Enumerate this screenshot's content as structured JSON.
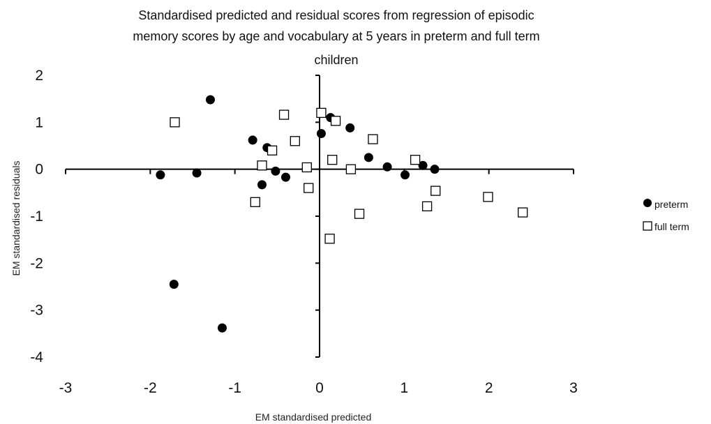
{
  "chart_data": {
    "type": "scatter",
    "title_lines": [
      "Standardised predicted and residual scores from regression of episodic",
      "memory scores by age and vocabulary at 5 years in preterm and full term",
      "children"
    ],
    "xlabel": "EM standardised predicted",
    "ylabel": "EM standardised residuals",
    "xlim": [
      -3,
      3
    ],
    "ylim": [
      -4,
      2
    ],
    "x_ticks": [
      -3,
      -2,
      -1,
      0,
      1,
      2,
      3
    ],
    "y_ticks": [
      2,
      1,
      0,
      -1,
      -2,
      -3,
      -4
    ],
    "grid": false,
    "legend_position": "right",
    "series": [
      {
        "name": "preterm",
        "marker": "filled-circle",
        "color": "#000000",
        "points": [
          [
            -1.88,
            -0.12
          ],
          [
            -1.45,
            -0.08
          ],
          [
            -1.29,
            1.48
          ],
          [
            -1.72,
            -2.45
          ],
          [
            -1.15,
            -3.38
          ],
          [
            -0.79,
            0.62
          ],
          [
            -0.62,
            0.46
          ],
          [
            -0.52,
            -0.04
          ],
          [
            -0.68,
            -0.33
          ],
          [
            -0.4,
            -0.17
          ],
          [
            0.02,
            0.76
          ],
          [
            0.13,
            1.1
          ],
          [
            0.36,
            0.88
          ],
          [
            0.58,
            0.25
          ],
          [
            0.8,
            0.05
          ],
          [
            1.01,
            -0.12
          ],
          [
            1.22,
            0.08
          ],
          [
            1.36,
            0.0
          ]
        ]
      },
      {
        "name": "full term",
        "marker": "open-square",
        "color": "#ffffff",
        "points": [
          [
            -1.71,
            1.0
          ],
          [
            -0.76,
            -0.7
          ],
          [
            -0.68,
            0.08
          ],
          [
            -0.56,
            0.4
          ],
          [
            -0.42,
            1.16
          ],
          [
            -0.29,
            0.6
          ],
          [
            -0.15,
            0.04
          ],
          [
            -0.13,
            -0.4
          ],
          [
            0.02,
            1.2
          ],
          [
            0.19,
            1.03
          ],
          [
            0.15,
            0.2
          ],
          [
            0.37,
            0.0
          ],
          [
            0.63,
            0.64
          ],
          [
            0.47,
            -0.95
          ],
          [
            0.12,
            -1.48
          ],
          [
            1.13,
            0.2
          ],
          [
            1.37,
            -0.46
          ],
          [
            1.27,
            -0.79
          ],
          [
            1.99,
            -0.59
          ],
          [
            2.4,
            -0.92
          ]
        ]
      }
    ]
  }
}
